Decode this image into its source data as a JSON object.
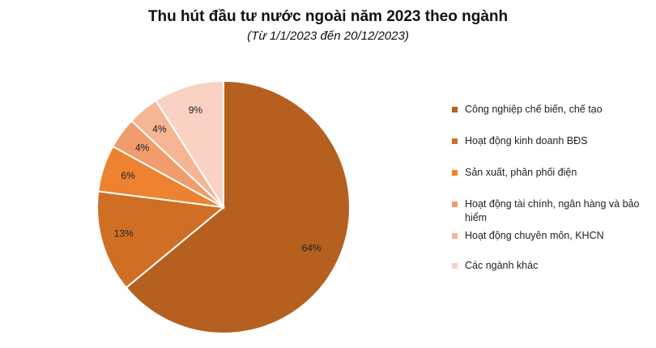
{
  "chart_data": {
    "type": "pie",
    "title": "Thu hút đầu tư nước ngoài năm 2023 theo ngành",
    "subtitle": "(Từ 1/1/2023 đến 20/12/2023)",
    "start_angle_deg": 0,
    "direction": "clockwise",
    "legend_position": "right",
    "slices": [
      {
        "name": "Công nghiệp chế biến, chế tạo",
        "value": 64,
        "label": "64%",
        "color": "#b5601f"
      },
      {
        "name": "Hoạt động kinh doanh BĐS",
        "value": 13,
        "label": "13%",
        "color": "#d06f24"
      },
      {
        "name": "Sản xuất, phân phối điện",
        "value": 6,
        "label": "6%",
        "color": "#ed8230"
      },
      {
        "name": "Hoạt động tài chính, ngân hàng và bảo hiểm",
        "value": 4,
        "label": "4%",
        "color": "#f19c6c"
      },
      {
        "name": "Hoạt động chuyên môn, KHCN",
        "value": 4,
        "label": "4%",
        "color": "#f6b694"
      },
      {
        "name": "Các ngành khác",
        "value": 9,
        "label": "9%",
        "color": "#f9d2c4"
      }
    ]
  }
}
